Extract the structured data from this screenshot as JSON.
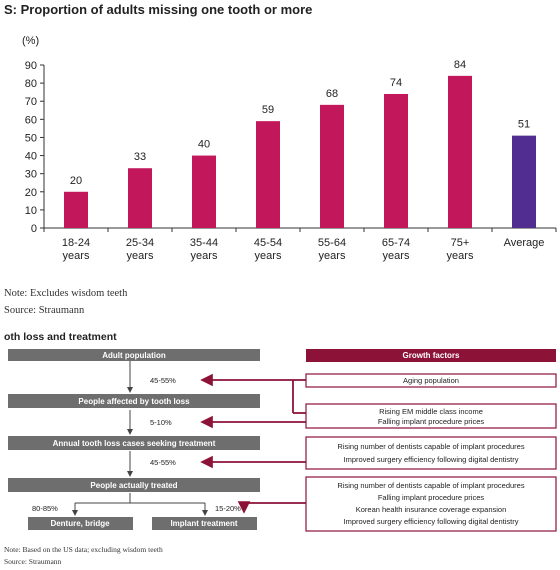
{
  "chart_data": {
    "type": "bar",
    "title": "S: Proportion of adults missing one tooth or more",
    "ylabel": "(%)",
    "ylim": [
      0,
      90
    ],
    "yticks": [
      0,
      10,
      20,
      30,
      40,
      50,
      60,
      70,
      80,
      90
    ],
    "categories": [
      [
        "18-24",
        "years"
      ],
      [
        "25-34",
        "years"
      ],
      [
        "35-44",
        "years"
      ],
      [
        "45-54",
        "years"
      ],
      [
        "55-64",
        "years"
      ],
      [
        "65-74",
        "years"
      ],
      [
        "75+",
        "years"
      ],
      [
        "Average",
        ""
      ]
    ],
    "values": [
      20,
      33,
      40,
      59,
      68,
      74,
      84,
      51
    ],
    "colors": [
      "#c2185b",
      "#c2185b",
      "#c2185b",
      "#c2185b",
      "#c2185b",
      "#c2185b",
      "#c2185b",
      "#512d91"
    ],
    "grid": false
  },
  "notes": {
    "exclusion": "Note: Excludes wisdom teeth",
    "source": "Source: Straumann"
  },
  "section2": {
    "title": "oth loss and treatment",
    "boxes": {
      "adult_population": "Adult population",
      "affected": "People affected by tooth loss",
      "seeking": "Annual tooth loss cases seeking treatment",
      "treated": "People actually treated",
      "denture": "Denture, bridge",
      "implant": "Implant treatment"
    },
    "percents": {
      "p1": "45-55%",
      "p2": "5-10%",
      "p3": "45-55%",
      "p4": "80-85%",
      "p5": "15-20%"
    },
    "growth_factors_title": "Growth factors",
    "factors": [
      [
        "Aging population"
      ],
      [
        "Rising EM middle class income",
        "Falling implant procedure prices"
      ],
      [
        "Rising number of dentists capable of implant procedures",
        "Improved surgery efficiency following digital dentistry"
      ],
      [
        "Rising number of dentists capable of implant procedures",
        "Falling implant procedure prices",
        "Korean health insurance coverage expansion",
        "Improved surgery efficiency following digital dentistry"
      ]
    ],
    "note": "Note: Based on the US data; excluding wisdom teeth",
    "source": "Source: Straumann"
  },
  "colors": {
    "bar_age": "#c2185b",
    "bar_average": "#512d91",
    "flow_box": "#6e6e6e",
    "accent": "#8c1238"
  }
}
